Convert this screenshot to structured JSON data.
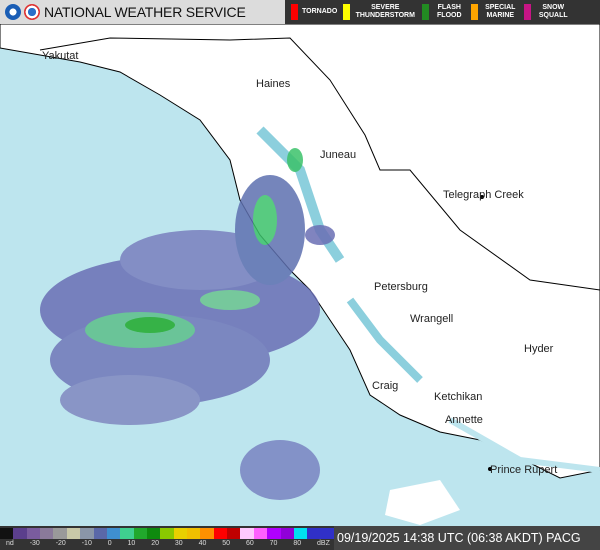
{
  "header": {
    "title": "NATIONAL WEATHER SERVICE",
    "warnings": [
      {
        "label": "TORNADO",
        "color": "#ff0000"
      },
      {
        "label": "SEVERE THUNDERSTORM",
        "color": "#ffff00"
      },
      {
        "label": "FLASH FLOOD",
        "color": "#228b22"
      },
      {
        "label": "SPECIAL MARINE",
        "color": "#ffa500"
      },
      {
        "label": "SNOW SQUALL",
        "color": "#c71585"
      }
    ]
  },
  "map": {
    "cities": [
      "Yakutat",
      "Haines",
      "Juneau",
      "Telegraph Creek",
      "Petersburg",
      "Wrangell",
      "Hyder",
      "Craig",
      "Ketchikan",
      "Annette",
      "Prince Rupert"
    ],
    "colors": {
      "ocean": "#bde5ee",
      "land": "#ffffff",
      "radar_light": "#6a6fb5",
      "radar_green": "#3cc26a"
    }
  },
  "legend": {
    "ticks": [
      "nd",
      "-30",
      "-20",
      "-10",
      "0",
      "10",
      "20",
      "30",
      "40",
      "50",
      "60",
      "70",
      "80",
      "dBZ"
    ]
  },
  "footer": {
    "timestamp": "09/19/2025 14:38 UTC (06:38 AKDT) PACG"
  }
}
